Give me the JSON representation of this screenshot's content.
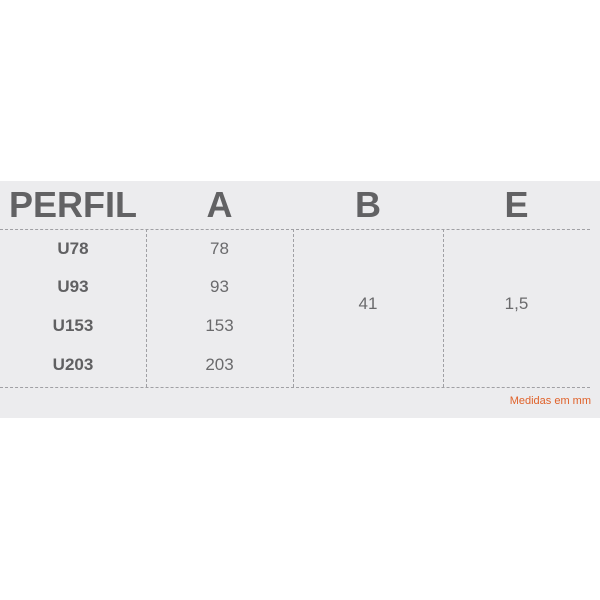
{
  "headers": [
    "PERFIL",
    "A",
    "B",
    "E"
  ],
  "rows": [
    {
      "perfil": "U78",
      "a": "78"
    },
    {
      "perfil": "U93",
      "a": "93"
    },
    {
      "perfil": "U153",
      "a": "153"
    },
    {
      "perfil": "U203",
      "a": "203"
    }
  ],
  "b_value": "41",
  "e_value": "1,5",
  "note": "Medidas em mm",
  "colors": {
    "panel": "#ececee",
    "text": "#626264",
    "note": "#e0622a"
  }
}
